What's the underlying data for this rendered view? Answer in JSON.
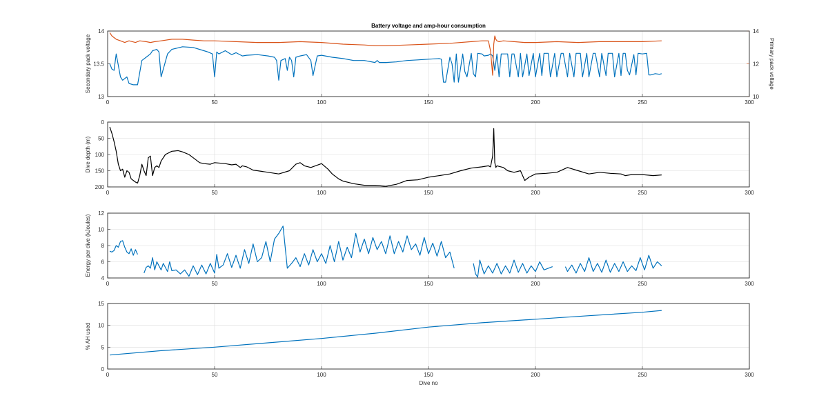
{
  "chart_data": [
    {
      "type": "line",
      "title": "Battery voltage and amp-hour consumption",
      "xlabel": "",
      "xlim": [
        0,
        300
      ],
      "x_ticks": [
        0,
        50,
        100,
        150,
        200,
        250,
        300
      ],
      "ylabel": "Secondary pack voltage",
      "ylim": [
        13,
        14
      ],
      "y_ticks": [
        13,
        13.5,
        14
      ],
      "y_tick_labels": [
        "13",
        "13.5",
        "14"
      ],
      "y2label": "Primary pack voltage",
      "y2lim": [
        10,
        14
      ],
      "y2_ticks": [
        10,
        12,
        14
      ],
      "grid": true,
      "series": [
        {
          "axis": "left",
          "color": "#0072BD",
          "x": [
            1,
            2,
            3,
            4,
            6,
            7,
            9,
            10,
            12,
            14,
            16,
            18,
            20,
            21,
            23,
            24,
            25,
            28,
            30,
            35,
            40,
            45,
            47,
            49,
            50,
            51,
            52,
            55,
            58,
            60,
            63,
            65,
            70,
            75,
            78,
            79,
            80,
            81,
            83,
            84,
            85,
            86,
            87,
            88,
            90,
            93,
            95,
            96,
            98,
            100,
            105,
            110,
            115,
            120,
            125,
            126,
            127,
            130,
            135,
            140,
            145,
            150,
            155,
            156,
            157,
            158,
            160,
            161,
            162,
            163,
            164,
            166,
            167,
            168,
            170,
            171,
            172,
            173,
            175,
            176,
            178,
            179,
            180,
            181,
            182,
            183,
            184,
            185,
            187,
            188,
            189,
            190,
            192,
            193,
            194,
            196,
            197,
            199,
            200,
            202,
            203,
            204,
            206,
            207,
            209,
            210,
            212,
            213,
            215,
            216,
            218,
            219,
            221,
            222,
            224,
            225,
            227,
            228,
            230,
            231,
            233,
            234,
            236,
            237,
            239,
            240,
            241,
            242,
            243,
            244,
            246,
            247,
            248,
            250,
            252,
            253,
            254,
            256,
            258,
            259
          ],
          "values": [
            13.5,
            13.42,
            13.4,
            13.65,
            13.3,
            13.25,
            13.3,
            13.2,
            13.18,
            13.18,
            13.55,
            13.6,
            13.65,
            13.7,
            13.72,
            13.68,
            13.3,
            13.65,
            13.72,
            13.76,
            13.75,
            13.7,
            13.68,
            13.65,
            13.3,
            13.68,
            13.65,
            13.7,
            13.64,
            13.67,
            13.62,
            13.63,
            13.64,
            13.62,
            13.6,
            13.55,
            13.25,
            13.55,
            13.58,
            13.4,
            13.6,
            13.55,
            13.3,
            13.6,
            13.62,
            13.64,
            13.55,
            13.32,
            13.62,
            13.63,
            13.6,
            13.58,
            13.55,
            13.55,
            13.52,
            13.55,
            13.52,
            13.52,
            13.53,
            13.55,
            13.56,
            13.57,
            13.58,
            13.57,
            13.22,
            13.22,
            13.6,
            13.5,
            13.22,
            13.65,
            13.22,
            13.65,
            13.38,
            13.3,
            13.66,
            13.35,
            13.3,
            13.66,
            13.65,
            13.62,
            13.63,
            13.65,
            13.62,
            13.4,
            13.65,
            13.3,
            13.65,
            13.65,
            13.65,
            13.3,
            13.65,
            13.65,
            13.3,
            13.66,
            13.3,
            13.65,
            13.32,
            13.66,
            13.3,
            13.66,
            13.32,
            13.66,
            13.66,
            13.3,
            13.66,
            13.3,
            13.66,
            13.66,
            13.3,
            13.66,
            13.3,
            13.66,
            13.66,
            13.3,
            13.66,
            13.3,
            13.66,
            13.66,
            13.3,
            13.66,
            13.32,
            13.66,
            13.66,
            13.3,
            13.66,
            13.32,
            13.66,
            13.66,
            13.4,
            13.33,
            13.64,
            13.33,
            13.66,
            13.65,
            13.66,
            13.33,
            13.33,
            13.35,
            13.34,
            13.35
          ]
        },
        {
          "axis": "right",
          "color": "#D95319",
          "x": [
            1,
            2,
            4,
            6,
            8,
            10,
            13,
            15,
            18,
            20,
            22,
            25,
            30,
            35,
            40,
            45,
            50,
            60,
            70,
            80,
            90,
            100,
            110,
            120,
            125,
            130,
            140,
            150,
            160,
            170,
            175,
            178,
            179,
            180,
            180.5,
            181,
            181.5,
            182,
            183,
            185,
            190,
            195,
            200,
            210,
            220,
            230,
            240,
            250,
            259
          ],
          "values": [
            13.9,
            13.7,
            13.5,
            13.4,
            13.3,
            13.4,
            13.3,
            13.4,
            13.35,
            13.3,
            13.35,
            13.4,
            13.5,
            13.5,
            13.45,
            13.4,
            13.4,
            13.35,
            13.3,
            13.3,
            13.35,
            13.3,
            13.2,
            13.15,
            13.1,
            13.1,
            13.15,
            13.2,
            13.25,
            13.35,
            13.4,
            13.4,
            12.8,
            11.3,
            13.2,
            13.7,
            13.5,
            13.4,
            13.35,
            13.4,
            13.35,
            13.3,
            13.3,
            13.35,
            13.3,
            13.35,
            13.35,
            13.35,
            13.4
          ]
        }
      ]
    },
    {
      "type": "line",
      "title": "",
      "xlabel": "",
      "xlim": [
        0,
        300
      ],
      "x_ticks": [
        0,
        50,
        100,
        150,
        200,
        250,
        300
      ],
      "ylabel": "Dive depth (m)",
      "ylim": [
        0,
        200
      ],
      "y_reversed": true,
      "y_ticks": [
        0,
        50,
        100,
        150,
        200
      ],
      "grid": true,
      "series": [
        {
          "color": "#000000",
          "x": [
            1,
            2,
            3,
            4,
            5,
            6,
            7,
            8,
            9,
            10,
            11,
            12,
            13,
            14,
            15,
            16,
            17,
            18,
            19,
            20,
            21,
            22,
            23,
            24,
            25,
            27,
            30,
            33,
            35,
            38,
            40,
            43,
            45,
            48,
            50,
            55,
            58,
            60,
            62,
            63,
            65,
            68,
            70,
            75,
            80,
            85,
            88,
            90,
            92,
            95,
            100,
            103,
            105,
            108,
            110,
            115,
            120,
            125,
            130,
            135,
            140,
            145,
            150,
            155,
            160,
            165,
            170,
            175,
            178,
            179,
            180,
            180.5,
            181,
            181.5,
            182,
            185,
            187,
            190,
            193,
            195,
            197,
            200,
            205,
            210,
            215,
            220,
            225,
            230,
            235,
            240,
            242,
            245,
            250,
            255,
            259
          ],
          "values": [
            15,
            35,
            60,
            90,
            130,
            150,
            145,
            170,
            150,
            155,
            175,
            180,
            185,
            188,
            165,
            130,
            150,
            165,
            110,
            105,
            165,
            140,
            135,
            140,
            120,
            100,
            90,
            88,
            92,
            100,
            110,
            125,
            128,
            130,
            125,
            128,
            132,
            130,
            140,
            135,
            138,
            148,
            150,
            155,
            160,
            150,
            130,
            125,
            135,
            140,
            128,
            145,
            160,
            175,
            182,
            190,
            195,
            195,
            198,
            192,
            180,
            178,
            170,
            165,
            160,
            150,
            142,
            138,
            135,
            138,
            105,
            20,
            125,
            140,
            135,
            140,
            150,
            155,
            150,
            180,
            170,
            160,
            158,
            155,
            140,
            150,
            160,
            155,
            158,
            160,
            165,
            162,
            162,
            165,
            163
          ]
        }
      ]
    },
    {
      "type": "line",
      "title": "",
      "xlabel": "",
      "xlim": [
        0,
        300
      ],
      "x_ticks": [
        0,
        50,
        100,
        150,
        200,
        250,
        300
      ],
      "ylabel": "Energy per dive (kJoules)",
      "ylim": [
        4,
        12
      ],
      "y_ticks": [
        4,
        6,
        8,
        10,
        12
      ],
      "grid": true,
      "series": [
        {
          "color": "#0072BD",
          "segments": [
            {
              "x": [
                1,
                2,
                3,
                4,
                5,
                6,
                7,
                8,
                9,
                10,
                11,
                12,
                13,
                14
              ],
              "values": [
                7.3,
                7.2,
                7.4,
                8.0,
                7.8,
                8.5,
                8.6,
                7.8,
                7.2,
                7.0,
                7.6,
                6.8,
                7.5,
                6.9
              ]
            },
            {
              "x": [
                17,
                18,
                19,
                20,
                21,
                22,
                23,
                25,
                26,
                28,
                29,
                30,
                32,
                34,
                36,
                38,
                40,
                42,
                44,
                46,
                48,
                50,
                51,
                52,
                54,
                56,
                58,
                60,
                62,
                64,
                66,
                68,
                70,
                72,
                74,
                76,
                78,
                80,
                82,
                84,
                86,
                88,
                90,
                92,
                94,
                96,
                98,
                100,
                102,
                104,
                106,
                108,
                110,
                112,
                114,
                116,
                118,
                120,
                122,
                124,
                126,
                128,
                130,
                132,
                134,
                136,
                138,
                140,
                142,
                144,
                146,
                148,
                150,
                152,
                154,
                156,
                158,
                160,
                162
              ],
              "values": [
                4.6,
                5.3,
                5.5,
                5.2,
                6.5,
                5.0,
                6.0,
                5.0,
                5.8,
                4.8,
                6.0,
                4.9,
                5.0,
                4.5,
                5.0,
                4.2,
                5.5,
                4.4,
                5.6,
                4.5,
                5.8,
                4.6,
                6.9,
                5.2,
                5.6,
                7.0,
                5.3,
                6.8,
                5.2,
                7.5,
                5.8,
                8.2,
                6.0,
                6.5,
                8.5,
                6.0,
                8.8,
                9.5,
                10.4,
                5.2,
                5.8,
                6.5,
                5.4,
                7.0,
                5.6,
                7.5,
                6.0,
                7.0,
                5.8,
                8.0,
                6.0,
                8.5,
                6.2,
                7.8,
                6.5,
                9.5,
                7.2,
                8.8,
                7.0,
                9.0,
                7.5,
                8.5,
                7.0,
                9.2,
                7.0,
                8.5,
                7.2,
                9.2,
                7.5,
                8.2,
                6.8,
                9.0,
                7.0,
                8.3,
                6.7,
                8.5,
                6.5,
                7.2,
                5.2
              ]
            },
            {
              "x": [
                171,
                172,
                173,
                174,
                176,
                178,
                180,
                182,
                184,
                186,
                188,
                190,
                192,
                194,
                196,
                198,
                200,
                202,
                204,
                206,
                208
              ],
              "values": [
                5.8,
                4.5,
                4.1,
                6.2,
                4.5,
                5.5,
                4.6,
                5.8,
                4.5,
                5.5,
                4.6,
                6.2,
                4.7,
                5.8,
                4.6,
                5.5,
                4.8,
                6.0,
                5.0,
                5.2,
                5.4
              ]
            },
            {
              "x": [
                214,
                215,
                217,
                219,
                221,
                223,
                225,
                227,
                229,
                231,
                233,
                235,
                237,
                239,
                241,
                243,
                245,
                247,
                249,
                251,
                253,
                255,
                257,
                259
              ],
              "values": [
                5.4,
                4.8,
                5.6,
                4.6,
                5.8,
                4.8,
                6.5,
                4.8,
                5.8,
                4.7,
                6.2,
                4.7,
                5.8,
                4.8,
                6.0,
                4.8,
                5.5,
                4.9,
                6.5,
                5.0,
                6.8,
                5.2,
                6.0,
                5.5
              ]
            }
          ]
        }
      ]
    },
    {
      "type": "line",
      "title": "",
      "xlabel": "Dive no",
      "xlim": [
        0,
        300
      ],
      "x_ticks": [
        0,
        50,
        100,
        150,
        200,
        250,
        300
      ],
      "ylabel": "% AH used",
      "ylim": [
        0,
        15
      ],
      "y_ticks": [
        0,
        5,
        10,
        15
      ],
      "grid": true,
      "series": [
        {
          "color": "#0072BD",
          "x": [
            1,
            25,
            50,
            75,
            100,
            125,
            150,
            175,
            200,
            225,
            250,
            259
          ],
          "values": [
            3.2,
            4.2,
            5.0,
            6.0,
            7.0,
            8.2,
            9.6,
            10.6,
            11.4,
            12.2,
            13.0,
            13.4
          ]
        }
      ]
    }
  ]
}
